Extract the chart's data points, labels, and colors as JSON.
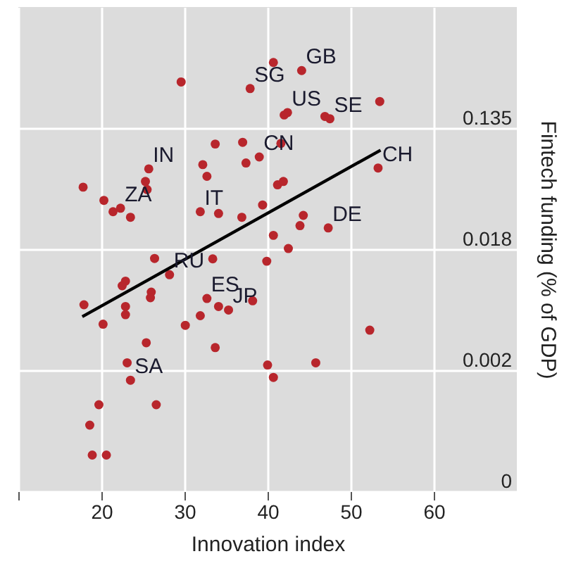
{
  "chart_data": {
    "type": "scatter",
    "xlabel": "Innovation index",
    "ylabel": "Fintech funding (% of GDP)",
    "log": "y",
    "grid": true,
    "marker": "circle",
    "xlim": [
      10,
      70
    ],
    "xticks": [
      {
        "value": 10,
        "label": null
      },
      20,
      30,
      40,
      50,
      60
    ],
    "ylim": [
      0.000335,
      1
    ],
    "yticks": [
      {
        "value": 0.000335,
        "label": "0"
      },
      {
        "value": 0.00248,
        "label": "0.002"
      },
      {
        "value": 0.0183,
        "label": "0.018"
      },
      {
        "value": 0.1353,
        "label": "0.135"
      }
    ],
    "series": [
      {
        "color": "#b8262c",
        "x": [
          40.7,
          44.1,
          29.6,
          37.9,
          42.4,
          42.0,
          46.9,
          47.5,
          53.5,
          33.7,
          37.0,
          41.6,
          39.0,
          37.4,
          32.2,
          32.7,
          25.7,
          25.3,
          25.5,
          17.8,
          20.3,
          22.3,
          21.4,
          23.5,
          41.2,
          41.9,
          53.3,
          31.9,
          34.1,
          36.9,
          39.4,
          44.3,
          43.9,
          47.3,
          40.7,
          42.5,
          39.9,
          26.4,
          33.4,
          28.2,
          22.9,
          22.5,
          26.0,
          25.9,
          17.9,
          22.9,
          22.9,
          20.2,
          32.7,
          34.1,
          35.3,
          38.2,
          31.9,
          30.1,
          25.4,
          33.7,
          52.3,
          23.1,
          40.0,
          45.8,
          23.5,
          40.7,
          26.6,
          19.7,
          18.6,
          18.9,
          20.6
        ],
        "values": [
          0.4,
          0.35,
          0.29,
          0.26,
          0.175,
          0.168,
          0.164,
          0.158,
          0.21,
          0.104,
          0.107,
          0.105,
          0.084,
          0.076,
          0.074,
          0.061,
          0.069,
          0.056,
          0.049,
          0.051,
          0.041,
          0.036,
          0.034,
          0.031,
          0.053,
          0.056,
          0.07,
          0.034,
          0.033,
          0.031,
          0.038,
          0.032,
          0.027,
          0.026,
          0.023,
          0.0185,
          0.015,
          0.0157,
          0.0156,
          0.012,
          0.0108,
          0.01,
          0.009,
          0.0082,
          0.0073,
          0.0071,
          0.0062,
          0.0053,
          0.0081,
          0.0071,
          0.0067,
          0.0078,
          0.0061,
          0.0052,
          0.0039,
          0.0036,
          0.0048,
          0.0028,
          0.0027,
          0.0028,
          0.0021,
          0.0022,
          0.0014,
          0.0014,
          0.001,
          0.00061,
          0.00061
        ]
      },
      {
        "type": "line",
        "marker": "none",
        "color": "#000000",
        "x": [
          17.7,
          53.6
        ],
        "values": [
          0.006,
          0.094
        ]
      }
    ],
    "annotations": [
      {
        "text": "SG",
        "x": 37.9,
        "y": 0.26
      },
      {
        "text": "GB",
        "x": 44.1,
        "y": 0.35
      },
      {
        "text": "US",
        "x": 42.4,
        "y": 0.175
      },
      {
        "text": "SE",
        "x": 47.5,
        "y": 0.158
      },
      {
        "text": "CN",
        "x": 39.0,
        "y": 0.084
      },
      {
        "text": "IN",
        "x": 25.7,
        "y": 0.069
      },
      {
        "text": "ZA",
        "x": 22.3,
        "y": 0.036
      },
      {
        "text": "IT",
        "x": 31.9,
        "y": 0.034
      },
      {
        "text": "CH",
        "x": 53.3,
        "y": 0.07
      },
      {
        "text": "DE",
        "x": 47.3,
        "y": 0.026
      },
      {
        "text": "RU",
        "x": 28.2,
        "y": 0.012
      },
      {
        "text": "ES",
        "x": 32.7,
        "y": 0.0081
      },
      {
        "text": "JP",
        "x": 35.3,
        "y": 0.0067
      },
      {
        "text": "SA",
        "x": 23.5,
        "y": 0.0021
      }
    ]
  }
}
